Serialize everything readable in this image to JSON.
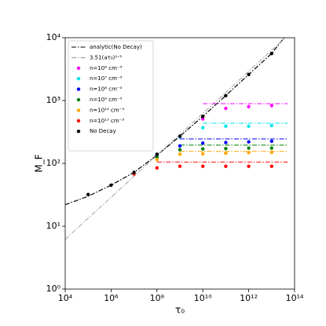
{
  "chart_data": {
    "type": "scatter",
    "x_label": "τ₀",
    "y_label": "M_F",
    "xscale": "log",
    "yscale": "log",
    "xlim": [
      10000,
      100000000000000
    ],
    "ylim": [
      1,
      10000
    ],
    "xticks": [
      {
        "value": 10000,
        "label": "10⁴"
      },
      {
        "value": 1000000,
        "label": "10⁶"
      },
      {
        "value": 100000000,
        "label": "10⁸"
      },
      {
        "value": 10000000000,
        "label": "10¹⁰"
      },
      {
        "value": 1000000000000,
        "label": "10¹²"
      },
      {
        "value": 100000000000000,
        "label": "10¹⁴"
      }
    ],
    "yticks": [
      {
        "value": 1,
        "label": "10⁰"
      },
      {
        "value": 10,
        "label": "10¹"
      },
      {
        "value": 100,
        "label": "10²"
      },
      {
        "value": 1000,
        "label": "10³"
      },
      {
        "value": 10000,
        "label": "10⁴"
      }
    ],
    "legend": "upper left",
    "lines": [
      {
        "name": "analytic(No Decay)",
        "color": "#000000",
        "style": "dashdot",
        "x": [
          10000,
          100000,
          1000000,
          10000000,
          100000000,
          1000000000,
          10000000000,
          100000000000,
          1000000000000,
          10000000000000,
          35000000000000
        ],
        "values": [
          22,
          30,
          45,
          72,
          135,
          270,
          560,
          1200,
          2600,
          5600,
          10000
        ]
      },
      {
        "name": "3.51(aτ₀)¹ᐟ³",
        "color": "#999999",
        "style": "dashdot",
        "x": [
          10000,
          40000000000000
        ],
        "values": [
          6.2,
          10000
        ]
      }
    ],
    "series": [
      {
        "name": "n=10⁶ cm⁻³",
        "color": "#ff00ff",
        "x": [
          100000000,
          1000000000,
          10000000000,
          100000000000,
          1000000000000,
          10000000000000
        ],
        "values": [
          135,
          265,
          510,
          750,
          800,
          830
        ],
        "asymptote": 890,
        "asymptote_x": [
          10000000000,
          50000000000000
        ]
      },
      {
        "name": "n=10⁷ cm⁻³",
        "color": "#00e5ee",
        "x": [
          100000000,
          1000000000,
          10000000000,
          100000000000,
          1000000000000,
          10000000000000
        ],
        "values": [
          135,
          265,
          370,
          390,
          390,
          400
        ],
        "asymptote": 435,
        "asymptote_x": [
          10000000000,
          50000000000000
        ]
      },
      {
        "name": "n=10⁸ cm⁻³",
        "color": "#0000ff",
        "x": [
          100000000,
          1000000000,
          10000000000,
          100000000000,
          1000000000000,
          10000000000000
        ],
        "values": [
          130,
          190,
          210,
          215,
          220,
          225
        ],
        "asymptote": 245,
        "asymptote_x": [
          1000000000,
          50000000000000
        ]
      },
      {
        "name": "n=10⁹ cm⁻³",
        "color": "#008000",
        "x": [
          100000000,
          1000000000,
          10000000000,
          100000000000,
          1000000000000,
          10000000000000
        ],
        "values": [
          125,
          165,
          170,
          172,
          175,
          175
        ],
        "asymptote": 195,
        "asymptote_x": [
          1000000000,
          50000000000000
        ]
      },
      {
        "name": "n=10¹² cm⁻³",
        "color": "#ffa500",
        "x": [
          100000000,
          1000000000,
          10000000000,
          100000000000,
          1000000000000,
          10000000000000
        ],
        "values": [
          115,
          140,
          142,
          145,
          148,
          150
        ],
        "asymptote": 155,
        "asymptote_x": [
          1000000000,
          50000000000000
        ]
      },
      {
        "name": "n=10¹³ cm⁻³",
        "color": "#ff0000",
        "x": [
          10000000,
          100000000,
          1000000000,
          10000000000,
          100000000000,
          1000000000000,
          10000000000000
        ],
        "values": [
          68,
          85,
          90,
          90,
          90,
          90,
          90
        ],
        "asymptote": 105,
        "asymptote_x": [
          100000000,
          50000000000000
        ]
      },
      {
        "name": "No Decay",
        "color": "#000000",
        "x": [
          100000,
          1000000,
          10000000,
          100000000,
          1000000000,
          10000000000,
          100000000000,
          1000000000000,
          10000000000000
        ],
        "values": [
          32,
          45,
          72,
          140,
          270,
          560,
          1200,
          2600,
          5600
        ]
      }
    ]
  }
}
